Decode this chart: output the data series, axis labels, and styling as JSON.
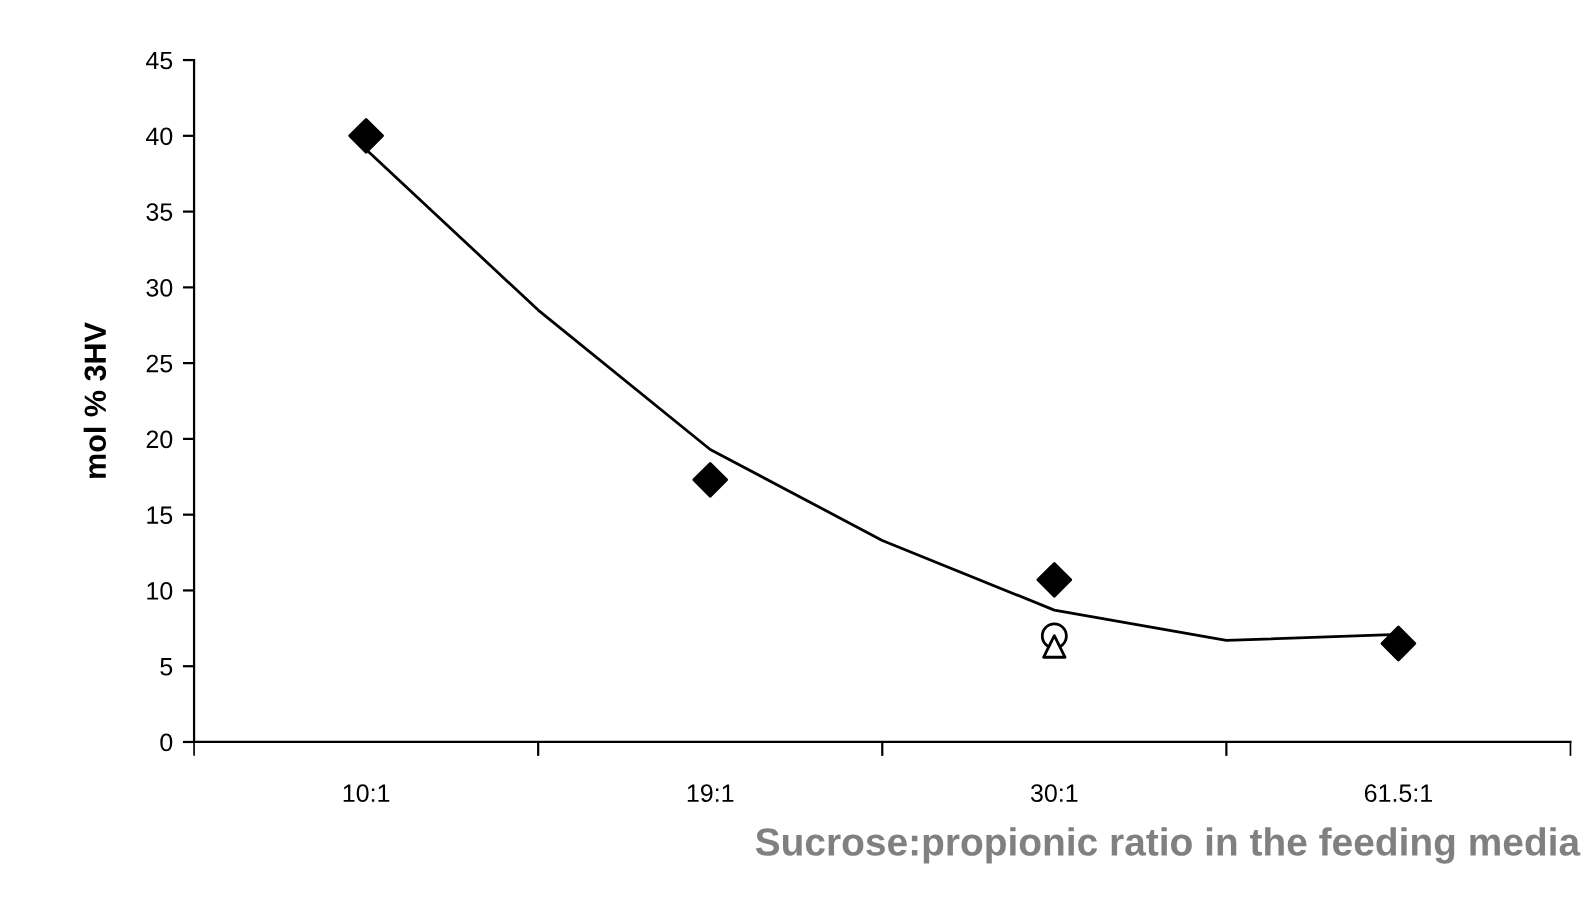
{
  "chart_data": {
    "type": "line",
    "xlabel": "Sucrose:propionic ratio in the feeding media",
    "ylabel": "mol % 3HV",
    "categories": [
      "10:1",
      null,
      "19:1",
      null,
      "30:1",
      null,
      "61.5:1"
    ],
    "ylim": [
      0,
      45
    ],
    "yticks": [
      0,
      5,
      10,
      15,
      20,
      25,
      30,
      35,
      40,
      45
    ],
    "grid": false,
    "legend": false,
    "series": [
      {
        "color": "#000000",
        "values": [
          39.1,
          28.5,
          19.3,
          13.3,
          8.7,
          6.7,
          7.1
        ],
        "marker": "none",
        "line_style": "solid"
      },
      {
        "type": "scatter",
        "color": "#000000",
        "marker": "diamond",
        "values": [
          40,
          null,
          17.3,
          null,
          10.7,
          null,
          6.5
        ]
      },
      {
        "type": "scatter",
        "color": "#ffffff",
        "marker": "circle",
        "values": [
          null,
          null,
          null,
          null,
          7.0,
          null,
          null
        ]
      },
      {
        "type": "scatter",
        "color": "#ffffff",
        "marker": "triangle",
        "values": [
          null,
          null,
          null,
          null,
          6.3,
          null,
          null
        ]
      }
    ]
  }
}
